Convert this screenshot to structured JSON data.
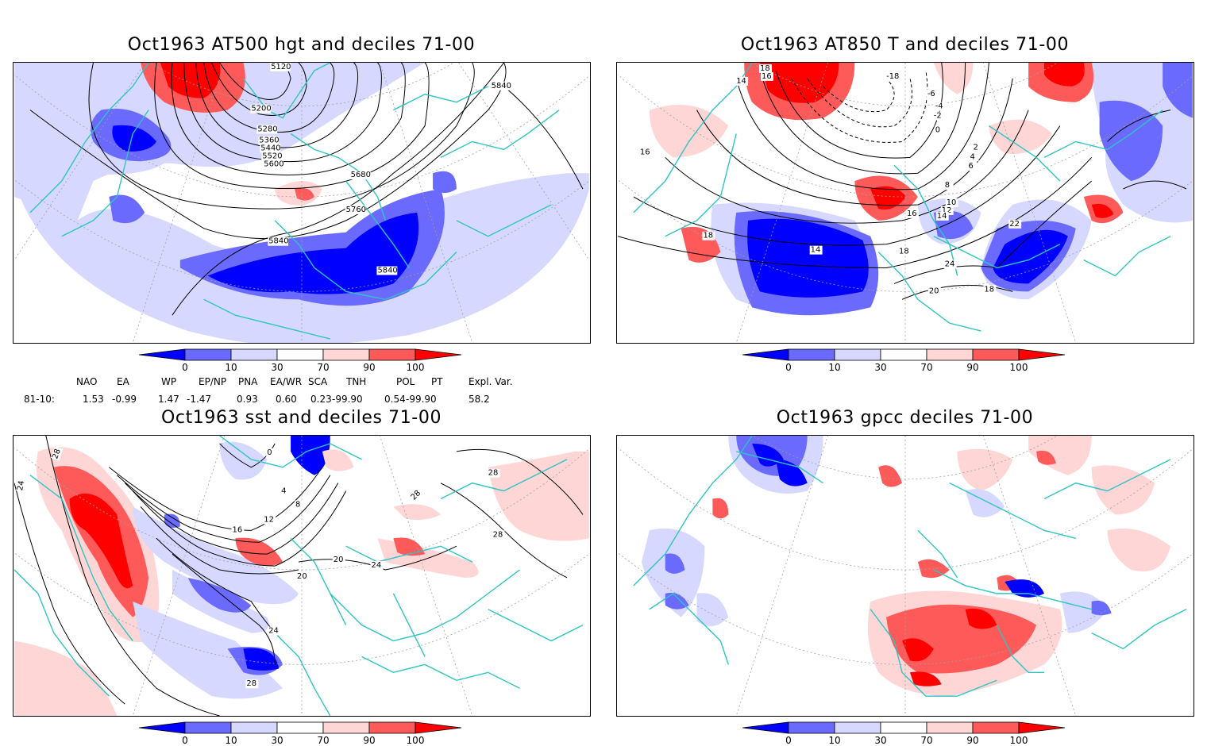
{
  "panels": {
    "hgt": {
      "title": "Oct1963 AT500 hgt and deciles 71-00",
      "contour_labels": [
        "5120",
        "5200",
        "5280",
        "5360",
        "5440",
        "5520",
        "5600",
        "5680",
        "5760",
        "5840",
        "5840",
        "5840"
      ]
    },
    "t850": {
      "title": "Oct1963 AT850 T and deciles 71-00",
      "contour_labels": [
        "18",
        "16",
        "14",
        "-18",
        "-6",
        "-4",
        "-2",
        "0",
        "2",
        "4",
        "6",
        "8",
        "10",
        "12",
        "14",
        "16",
        "18",
        "20",
        "22",
        "24",
        "14",
        "16",
        "18",
        "18"
      ]
    },
    "sst": {
      "title": "Oct1963 sst and deciles 71-00",
      "contour_labels": [
        "24",
        "28",
        "28",
        "28",
        "0",
        "4",
        "8",
        "12",
        "16",
        "20",
        "20",
        "24",
        "28",
        "24",
        "28"
      ]
    },
    "gpcc": {
      "title": "Oct1963 gpcc deciles 71-00"
    }
  },
  "colorbar": {
    "tick_labels": [
      "0",
      "10",
      "30",
      "70",
      "90",
      "100"
    ],
    "colors": [
      "#0000ff",
      "#6a6aff",
      "#d6d8ff",
      "#ffffff",
      "#ffd6d6",
      "#ff5a5a",
      "#ff0000"
    ]
  },
  "indices": {
    "headers": [
      "NAO",
      "EA",
      "WP",
      "EP/NP",
      "PNA",
      "EA/WR",
      "SCA",
      "TNH",
      "POL",
      "PT",
      "Expl. Var."
    ],
    "row_label": "81-10:",
    "values": [
      "1.53",
      "-0.99",
      "1.47",
      "-1.47",
      "0.93",
      "0.60",
      "0.23",
      "-99.90",
      "0.54",
      "-99.90",
      "58.2"
    ]
  },
  "map_colors": {
    "coast": "#2ec4c4",
    "contour": "#000000",
    "grid": "#a0a0a0"
  }
}
